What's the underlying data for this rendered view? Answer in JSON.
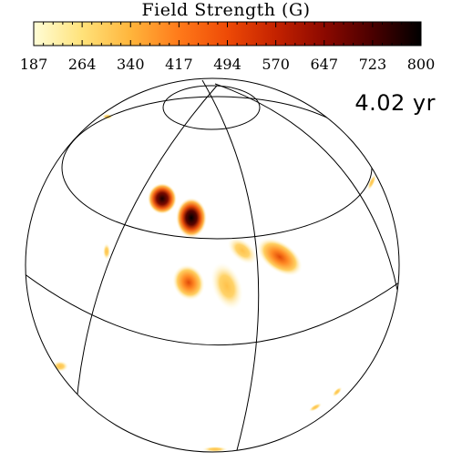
{
  "colorbar": {
    "title": "Field Strength (G)",
    "tick_labels": [
      "187",
      "264",
      "340",
      "417",
      "494",
      "570",
      "647",
      "723",
      "800"
    ],
    "range": [
      187,
      800
    ],
    "colormap": [
      "#fffdd6",
      "#ffe27a",
      "#ffb53c",
      "#ff7a1a",
      "#ee4a06",
      "#c42200",
      "#8c0900",
      "#4a0000",
      "#000000"
    ]
  },
  "epoch_label": "4.02 yr",
  "globe": {
    "line_color": "#000000",
    "background": "#ffffff"
  }
}
